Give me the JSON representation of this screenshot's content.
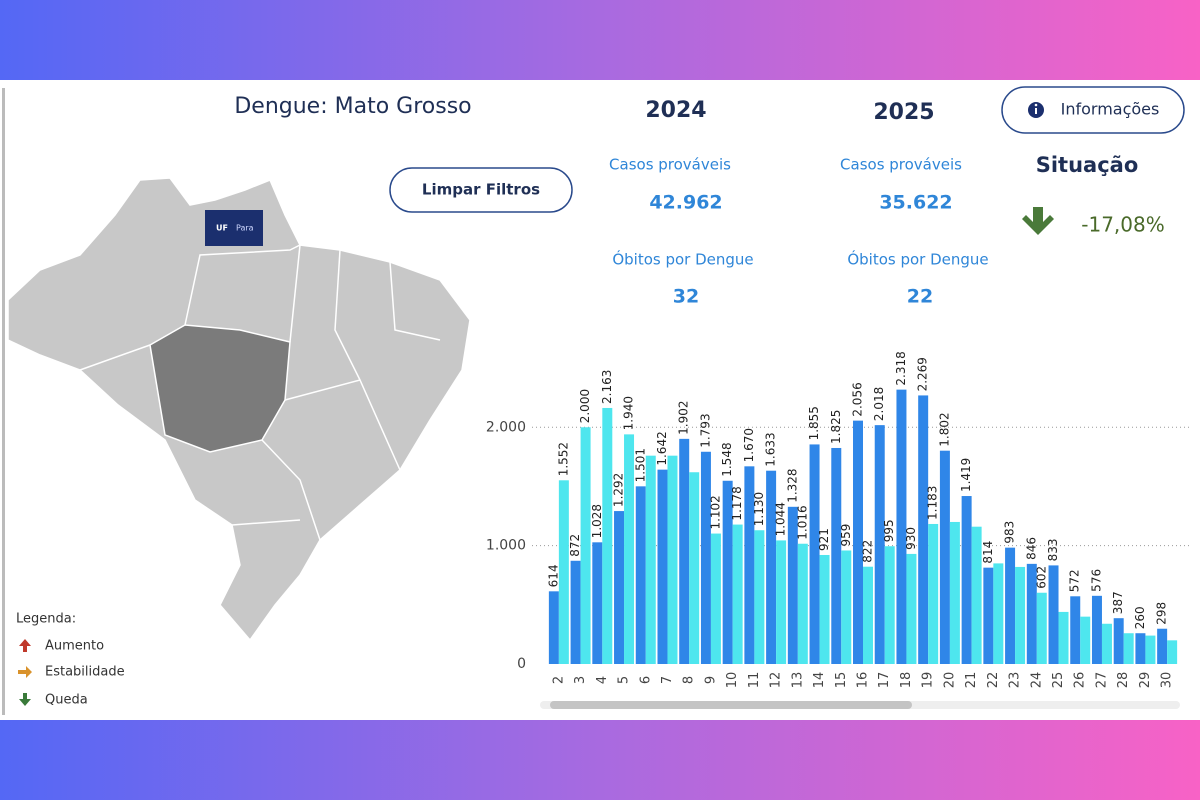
{
  "header": {
    "title": "Dengue: Mato Grosso",
    "info_button": "Informações",
    "clear_button": "Limpar Filtros"
  },
  "tooltip": {
    "key": "UF",
    "value": "Para"
  },
  "kpis": [
    {
      "year": "2024",
      "cases_label": "Casos prováveis",
      "cases": "42.962",
      "deaths_label": "Óbitos por Dengue",
      "deaths": "32"
    },
    {
      "year": "2025",
      "cases_label": "Casos prováveis",
      "cases": "35.622",
      "deaths_label": "Óbitos por Dengue",
      "deaths": "22"
    }
  ],
  "situation": {
    "title": "Situação",
    "change": "-17,08%"
  },
  "legend": {
    "title": "Legenda:",
    "items": [
      "Aumento",
      "Estabilidade",
      "Queda"
    ]
  },
  "chart_data": {
    "type": "bar",
    "categories": [
      "2",
      "3",
      "4",
      "5",
      "6",
      "7",
      "8",
      "9",
      "10",
      "11",
      "12",
      "13",
      "14",
      "15",
      "16",
      "17",
      "18",
      "19",
      "20",
      "21",
      "22",
      "23",
      "24",
      "25",
      "26",
      "27",
      "28",
      "29",
      "30"
    ],
    "series": [
      {
        "color": "#2f86e8",
        "values": [
          614,
          872,
          1028,
          1292,
          1501,
          1642,
          1902,
          1793,
          1548,
          1670,
          1633,
          1328,
          1855,
          1825,
          2056,
          2018,
          2318,
          2269,
          1802,
          1419,
          814,
          983,
          846,
          833,
          572,
          576,
          387,
          260,
          298
        ],
        "value_labels": [
          "614",
          "872",
          "1.028",
          "1.292",
          "1.501",
          "1.642",
          "1.902",
          "1.793",
          "1.548",
          "1.670",
          "1.633",
          "1.328",
          "1.855",
          "1.825",
          "2.056",
          "2.018",
          "2.318",
          "2.269",
          "1.802",
          "1.419",
          "814",
          "983",
          "846",
          "833",
          "572",
          "576",
          "387",
          "260",
          "298"
        ]
      },
      {
        "color": "#4ee6ee",
        "values": [
          1552,
          2000,
          2163,
          1940,
          1760,
          1760,
          1620,
          1102,
          1178,
          1130,
          1044,
          1016,
          921,
          959,
          822,
          995,
          930,
          1183,
          1200,
          1160,
          850,
          820,
          602,
          440,
          400,
          340,
          260,
          240,
          200
        ],
        "value_labels": [
          "1.552",
          "2.000",
          "2.163",
          "1.940",
          null,
          null,
          null,
          "1.102",
          "1.178",
          "1.130",
          "1.044",
          "1.016",
          "921",
          "959",
          "822",
          "995",
          "930",
          "1.183",
          null,
          null,
          null,
          null,
          "602",
          null,
          null,
          null,
          null,
          null,
          null
        ]
      }
    ],
    "ylim": [
      0,
      2450
    ],
    "yticks": [
      {
        "value": 0,
        "label": "0"
      },
      {
        "value": 1000,
        "label": "1.000"
      },
      {
        "value": 2000,
        "label": "2.000"
      }
    ],
    "grid": true
  }
}
